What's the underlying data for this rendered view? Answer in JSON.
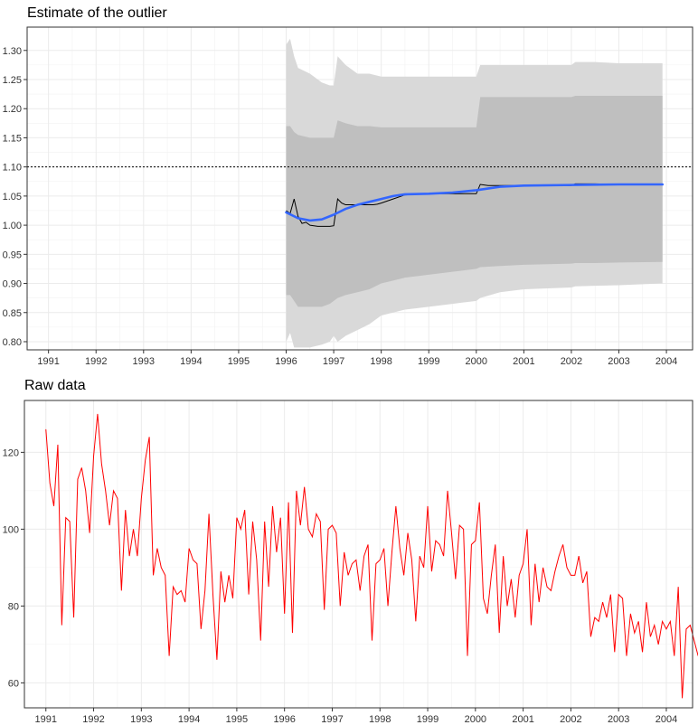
{
  "chart_data": [
    {
      "type": "line",
      "title": "Estimate of the outlier",
      "xlabel": "",
      "ylabel": "",
      "x_ticks": [
        "1991",
        "1992",
        "1993",
        "1994",
        "1995",
        "1996",
        "1997",
        "1998",
        "1999",
        "2000",
        "2001",
        "2002",
        "2003",
        "2004"
      ],
      "y_ticks": [
        "0.80",
        "0.85",
        "0.90",
        "0.95",
        "1.00",
        "1.05",
        "1.10",
        "1.15",
        "1.20",
        "1.25",
        "1.30"
      ],
      "xlim": [
        1990.55,
        2004.55
      ],
      "ylim": [
        0.786,
        1.34
      ],
      "grid": true,
      "reference_line": {
        "y": 1.1,
        "style": "dotted",
        "color": "#000000"
      },
      "colors": {
        "estimate": "#000000",
        "smooth": "#3366ff",
        "band_outer": "#d9d9d9",
        "band_inner": "#bfbfbf"
      },
      "estimate": {
        "x": [
          1996.0,
          1996.083,
          1996.167,
          1996.25,
          1996.333,
          1996.417,
          1996.5,
          1996.583,
          1996.667,
          1996.75,
          1996.833,
          1996.917,
          1997.0,
          1997.083,
          1997.167,
          1997.25,
          1997.333,
          1997.5,
          1997.667,
          1997.833,
          1997.917,
          1998.0,
          1998.25,
          1998.5,
          1998.75,
          1999.0,
          1999.25,
          1999.5,
          1999.75,
          2000.0,
          2000.083,
          2000.25,
          2000.5,
          2000.75,
          2001.0,
          2001.5,
          2002.0,
          2002.083,
          2002.5,
          2003.0,
          2003.5,
          2003.917
        ],
        "y": [
          1.025,
          1.02,
          1.045,
          1.015,
          1.003,
          1.005,
          1.0,
          0.999,
          0.998,
          0.998,
          0.998,
          0.998,
          0.999,
          1.045,
          1.038,
          1.035,
          1.035,
          1.035,
          1.035,
          1.035,
          1.036,
          1.038,
          1.045,
          1.052,
          1.053,
          1.054,
          1.054,
          1.054,
          1.054,
          1.054,
          1.07,
          1.068,
          1.068,
          1.068,
          1.068,
          1.068,
          1.068,
          1.071,
          1.071,
          1.07,
          1.07,
          1.07
        ]
      },
      "smooth": {
        "x": [
          1996.0,
          1996.25,
          1996.5,
          1996.75,
          1997.0,
          1997.25,
          1997.5,
          1997.75,
          1998.0,
          1998.25,
          1998.5,
          1999.0,
          1999.5,
          2000.0,
          2000.5,
          2001.0,
          2002.0,
          2003.0,
          2003.917
        ],
        "y": [
          1.022,
          1.012,
          1.008,
          1.01,
          1.018,
          1.028,
          1.035,
          1.04,
          1.045,
          1.05,
          1.053,
          1.054,
          1.056,
          1.06,
          1.066,
          1.068,
          1.069,
          1.07,
          1.07
        ]
      },
      "band_outer": {
        "x": [
          1996.0,
          1996.083,
          1996.167,
          1996.25,
          1996.5,
          1996.75,
          1996.917,
          1997.0,
          1997.083,
          1997.25,
          1997.5,
          1997.75,
          1998.0,
          1998.25,
          1998.5,
          1999.0,
          1999.5,
          2000.0,
          2000.083,
          2000.5,
          2001.0,
          2002.0,
          2002.083,
          2002.5,
          2003.0,
          2003.917
        ],
        "upper": [
          1.31,
          1.32,
          1.29,
          1.27,
          1.26,
          1.245,
          1.24,
          1.24,
          1.29,
          1.275,
          1.26,
          1.26,
          1.255,
          1.255,
          1.255,
          1.255,
          1.255,
          1.255,
          1.275,
          1.275,
          1.275,
          1.275,
          1.28,
          1.28,
          1.278,
          1.278
        ],
        "lower": [
          0.8,
          0.815,
          0.79,
          0.79,
          0.79,
          0.795,
          0.8,
          0.81,
          0.8,
          0.81,
          0.82,
          0.83,
          0.845,
          0.85,
          0.855,
          0.86,
          0.865,
          0.87,
          0.875,
          0.885,
          0.89,
          0.893,
          0.895,
          0.896,
          0.897,
          0.9
        ]
      },
      "band_inner": {
        "x": [
          1996.0,
          1996.083,
          1996.167,
          1996.25,
          1996.5,
          1996.75,
          1996.917,
          1997.0,
          1997.083,
          1997.25,
          1997.5,
          1997.75,
          1998.0,
          1998.25,
          1998.5,
          1999.0,
          1999.5,
          2000.0,
          2000.083,
          2000.5,
          2001.0,
          2002.0,
          2002.083,
          2002.5,
          2003.0,
          2003.917
        ],
        "upper": [
          1.17,
          1.17,
          1.16,
          1.155,
          1.15,
          1.15,
          1.15,
          1.15,
          1.18,
          1.175,
          1.17,
          1.17,
          1.168,
          1.168,
          1.168,
          1.168,
          1.168,
          1.168,
          1.22,
          1.22,
          1.22,
          1.22,
          1.222,
          1.222,
          1.222,
          1.222
        ],
        "lower": [
          0.88,
          0.88,
          0.87,
          0.86,
          0.86,
          0.86,
          0.865,
          0.87,
          0.875,
          0.88,
          0.885,
          0.89,
          0.9,
          0.905,
          0.91,
          0.915,
          0.92,
          0.925,
          0.928,
          0.93,
          0.932,
          0.934,
          0.935,
          0.935,
          0.936,
          0.937
        ]
      }
    },
    {
      "type": "line",
      "title": "Raw data",
      "xlabel": "",
      "ylabel": "",
      "x_ticks": [
        "1991",
        "1992",
        "1993",
        "1994",
        "1995",
        "1996",
        "1997",
        "1998",
        "1999",
        "2000",
        "2001",
        "2002",
        "2003",
        "2004"
      ],
      "y_ticks": [
        "60",
        "80",
        "100",
        "120"
      ],
      "xlim": [
        1990.55,
        2004.55
      ],
      "ylim": [
        53.5,
        133.5
      ],
      "grid": true,
      "colors": {
        "series": "#ff0000"
      },
      "start": 1991.0,
      "frequency": 12,
      "values": [
        126,
        112,
        106,
        122,
        75,
        103,
        102,
        77,
        113,
        116,
        110,
        99,
        119,
        130,
        117,
        110,
        101,
        110,
        108,
        84,
        105,
        93,
        100,
        93,
        108,
        118,
        124,
        88,
        95,
        90,
        88,
        67,
        85,
        83,
        84,
        81,
        95,
        92,
        91,
        74,
        84,
        104,
        83,
        66,
        89,
        81,
        88,
        82,
        103,
        100,
        105,
        83,
        102,
        92,
        71,
        102,
        85,
        106,
        94,
        103,
        78,
        107,
        73,
        110,
        101,
        111,
        100,
        98,
        104,
        102,
        79,
        100,
        101,
        99,
        80,
        94,
        88,
        91,
        92,
        84,
        93,
        96,
        71,
        91,
        92,
        95,
        80,
        94,
        106,
        95,
        88,
        99,
        92,
        76,
        93,
        90,
        106,
        89,
        97,
        96,
        93,
        110,
        99,
        87,
        101,
        100,
        67,
        96,
        97,
        107,
        82,
        78,
        88,
        96,
        73,
        93,
        80,
        87,
        77,
        88,
        91,
        100,
        75,
        91,
        81,
        90,
        85,
        84,
        89,
        93,
        96,
        90,
        88,
        88,
        93,
        86,
        89,
        72,
        77,
        76,
        81,
        77,
        83,
        68,
        83,
        82,
        67,
        78,
        73,
        76,
        68,
        81,
        72,
        75,
        70,
        76,
        74,
        76,
        67,
        85,
        56,
        74,
        75,
        71,
        67
      ]
    }
  ]
}
